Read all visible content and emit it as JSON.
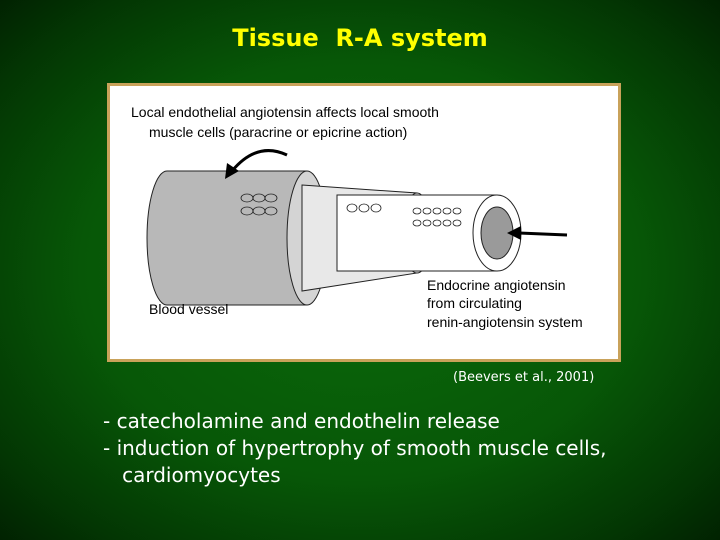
{
  "title": "Tissue  R-A system",
  "figure": {
    "caption_top": [
      "Local endothelial angiotensin affects local smooth",
      "muscle cells (paracrine or epicrine action)"
    ],
    "vessel_label": "Blood vessel",
    "endocrine_label": [
      "Endocrine angiotensin",
      "from circulating",
      "renin-angiotensin system"
    ]
  },
  "citation": "(Beevers et al., 2001)",
  "bullets": [
    "- catecholamine and endothelin release",
    "- induction of hypertrophy of smooth muscle cells,",
    "   cardiomyocytes"
  ]
}
